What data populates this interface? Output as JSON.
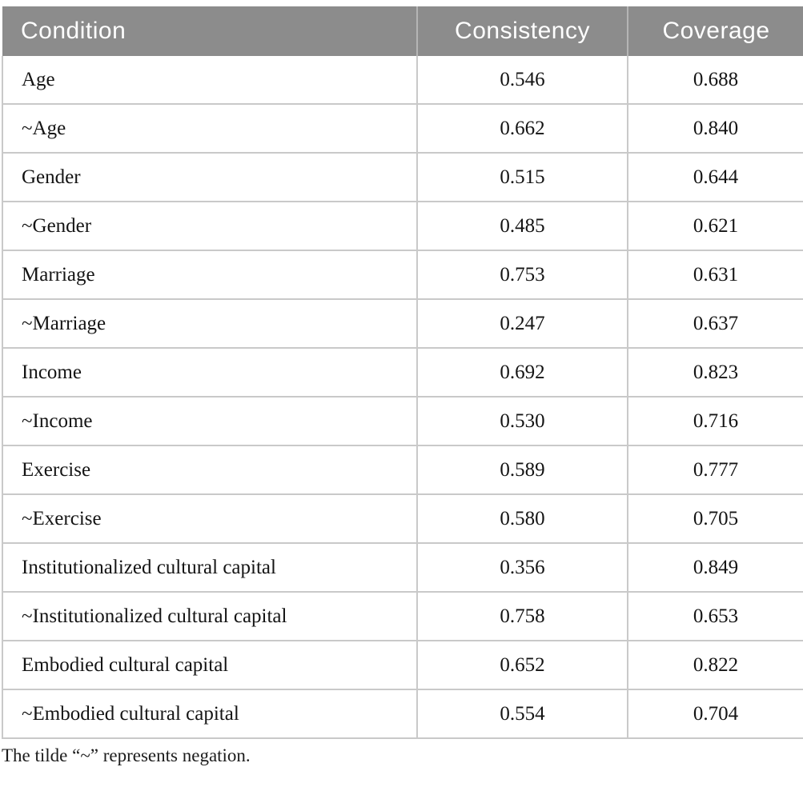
{
  "table": {
    "columns": [
      {
        "label": "Condition"
      },
      {
        "label": "Consistency"
      },
      {
        "label": "Coverage"
      }
    ],
    "rows": [
      {
        "condition": "Age",
        "consistency": "0.546",
        "coverage": "0.688"
      },
      {
        "condition": "~Age",
        "consistency": "0.662",
        "coverage": "0.840"
      },
      {
        "condition": "Gender",
        "consistency": "0.515",
        "coverage": "0.644"
      },
      {
        "condition": "~Gender",
        "consistency": "0.485",
        "coverage": "0.621"
      },
      {
        "condition": "Marriage",
        "consistency": "0.753",
        "coverage": "0.631"
      },
      {
        "condition": "~Marriage",
        "consistency": "0.247",
        "coverage": "0.637"
      },
      {
        "condition": "Income",
        "consistency": "0.692",
        "coverage": "0.823"
      },
      {
        "condition": "~Income",
        "consistency": "0.530",
        "coverage": "0.716"
      },
      {
        "condition": "Exercise",
        "consistency": "0.589",
        "coverage": "0.777"
      },
      {
        "condition": "~Exercise",
        "consistency": "0.580",
        "coverage": "0.705"
      },
      {
        "condition": "Institutionalized cultural capital",
        "consistency": "0.356",
        "coverage": "0.849"
      },
      {
        "condition": "~Institutionalized cultural capital",
        "consistency": "0.758",
        "coverage": "0.653"
      },
      {
        "condition": "Embodied cultural capital",
        "consistency": "0.652",
        "coverage": "0.822"
      },
      {
        "condition": "~Embodied cultural capital",
        "consistency": "0.554",
        "coverage": "0.704"
      }
    ],
    "footnote": "The tilde “~” represents negation."
  },
  "colors": {
    "header_bg": "#8c8c8c",
    "header_text": "#ffffff",
    "grid_line": "#c9c9c9",
    "body_text": "#141414"
  }
}
